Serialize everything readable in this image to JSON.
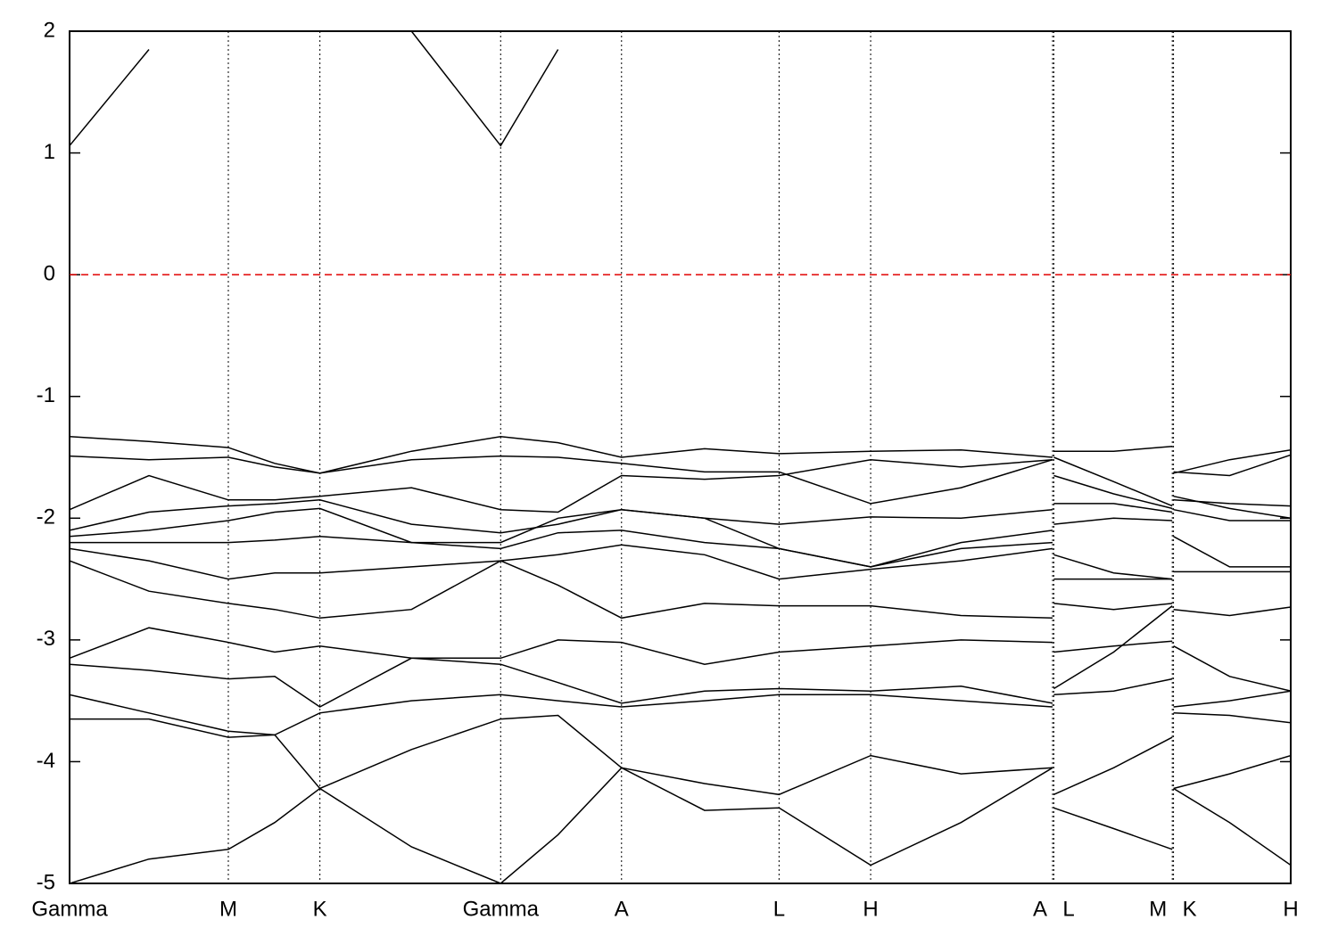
{
  "chart_data": {
    "type": "line",
    "color": "#000000",
    "hline": {
      "value": 0,
      "color": "#e00000"
    },
    "grid": true,
    "xlim": [
      0,
      1.0
    ],
    "ylim": [
      -5,
      2
    ],
    "yticks": [
      -5,
      -4,
      -3,
      -2,
      -1,
      0,
      1,
      2
    ],
    "xticks": [
      {
        "value": 0,
        "label": "Gamma"
      },
      {
        "value": 0.13,
        "label": "M"
      },
      {
        "value": 0.205,
        "label": "K"
      },
      {
        "value": 0.353,
        "label": "Gamma"
      },
      {
        "value": 0.452,
        "label": "A"
      },
      {
        "value": 0.581,
        "label": "L"
      },
      {
        "value": 0.656,
        "label": "H"
      },
      {
        "value": 0.805,
        "label": "A"
      },
      {
        "value": 0.806,
        "label": "L"
      },
      {
        "value": 0.903,
        "label": "M"
      },
      {
        "value": 0.904,
        "label": "K"
      },
      {
        "value": 1.0,
        "label": "H"
      }
    ],
    "x": [
      0,
      0.065,
      0.13,
      0.168,
      0.205,
      0.28,
      0.353,
      0.4,
      0.452,
      0.52,
      0.581,
      0.656,
      0.73,
      0.805,
      0.8055,
      0.806,
      0.855,
      0.903,
      0.9035,
      0.904,
      0.95,
      1.0
    ],
    "series": [
      {
        "values": [
          1.06,
          1.85,
          null,
          null,
          null,
          2.0,
          1.06,
          1.85,
          null,
          null,
          null,
          null,
          null,
          null,
          null,
          null,
          null,
          null,
          null,
          null,
          null,
          null
        ]
      },
      {
        "values": [
          -1.33,
          -1.37,
          -1.42,
          -1.55,
          -1.63,
          -1.45,
          -1.33,
          -1.38,
          -1.5,
          -1.43,
          -1.47,
          -1.45,
          -1.44,
          -1.5,
          null,
          -1.45,
          -1.45,
          -1.41,
          null,
          -1.63,
          -1.52,
          -1.44
        ]
      },
      {
        "values": [
          -1.49,
          -1.52,
          -1.5,
          -1.58,
          -1.63,
          -1.52,
          -1.49,
          -1.5,
          -1.55,
          -1.62,
          -1.62,
          -1.88,
          -1.75,
          -1.52,
          null,
          -1.5,
          -1.7,
          -1.9,
          null,
          -1.82,
          -1.92,
          -2.0
        ]
      },
      {
        "values": [
          -1.93,
          -1.65,
          -1.85,
          -1.85,
          -1.82,
          -1.75,
          -1.93,
          -1.95,
          -1.65,
          -1.68,
          -1.65,
          -1.52,
          -1.58,
          -1.52,
          null,
          -1.65,
          -1.8,
          -1.92,
          null,
          -1.62,
          -1.65,
          -1.48
        ]
      },
      {
        "values": [
          -2.1,
          -1.95,
          -1.9,
          -1.88,
          -1.85,
          -2.05,
          -2.12,
          -2.05,
          -1.93,
          -2.0,
          -2.05,
          -1.99,
          -2.0,
          -1.93,
          null,
          -1.88,
          -1.88,
          -1.95,
          null,
          -1.85,
          -1.88,
          -1.9
        ]
      },
      {
        "values": [
          -2.15,
          -2.1,
          -2.02,
          -1.95,
          -1.92,
          -2.2,
          -2.2,
          -2.0,
          -1.93,
          -2.0,
          -2.25,
          -2.4,
          -2.2,
          -2.1,
          null,
          -2.05,
          -2.0,
          -2.02,
          null,
          -1.93,
          -2.02,
          -2.02
        ]
      },
      {
        "values": [
          -2.2,
          -2.2,
          -2.2,
          -2.18,
          -2.15,
          -2.2,
          -2.25,
          -2.12,
          -2.1,
          -2.2,
          -2.25,
          -2.4,
          -2.25,
          -2.2,
          null,
          -2.3,
          -2.45,
          -2.5,
          null,
          -2.15,
          -2.4,
          -2.4
        ]
      },
      {
        "values": [
          -2.25,
          -2.35,
          -2.5,
          -2.45,
          -2.45,
          -2.4,
          -2.35,
          -2.3,
          -2.22,
          -2.3,
          -2.5,
          -2.42,
          -2.35,
          -2.25,
          null,
          -2.5,
          -2.5,
          -2.5,
          null,
          -2.44,
          -2.44,
          -2.44
        ]
      },
      {
        "values": [
          -2.35,
          -2.6,
          -2.7,
          -2.75,
          -2.82,
          -2.75,
          -2.35,
          -2.55,
          -2.82,
          -2.7,
          -2.72,
          -2.72,
          -2.8,
          -2.82,
          null,
          -2.7,
          -2.75,
          -2.7,
          null,
          -2.75,
          -2.8,
          -2.73
        ]
      },
      {
        "values": [
          -3.15,
          -2.9,
          -3.02,
          -3.1,
          -3.05,
          -3.15,
          -3.15,
          -3.0,
          -3.02,
          -3.2,
          -3.1,
          -3.05,
          -3.0,
          -3.02,
          null,
          -3.1,
          -3.05,
          -3.01,
          null,
          -3.05,
          -3.3,
          -3.42
        ]
      },
      {
        "values": [
          -3.2,
          -3.25,
          -3.32,
          -3.3,
          -3.55,
          -3.15,
          -3.2,
          -3.35,
          -3.52,
          -3.42,
          -3.4,
          -3.42,
          -3.38,
          -3.52,
          null,
          -3.4,
          -3.1,
          -2.72,
          null,
          -3.55,
          -3.5,
          -3.42
        ]
      },
      {
        "values": [
          -3.45,
          -3.6,
          -3.75,
          -3.78,
          -3.6,
          -3.5,
          -3.45,
          -3.5,
          -3.55,
          -3.5,
          -3.45,
          -3.45,
          -3.5,
          -3.55,
          null,
          -3.45,
          -3.42,
          -3.32,
          null,
          -3.6,
          -3.62,
          -3.68
        ]
      },
      {
        "values": [
          -3.65,
          -3.65,
          -3.8,
          -3.78,
          -4.22,
          -3.9,
          -3.65,
          -3.62,
          -4.05,
          -4.18,
          -4.27,
          -3.95,
          -4.1,
          -4.05,
          null,
          -4.27,
          -4.05,
          -3.8,
          null,
          -4.22,
          -4.1,
          -3.95
        ]
      },
      {
        "values": [
          -5.0,
          -4.8,
          -4.72,
          -4.5,
          -4.22,
          -4.7,
          -5.0,
          -4.6,
          -4.05,
          -4.4,
          -4.38,
          -4.85,
          -4.5,
          -4.05,
          null,
          -4.38,
          -4.55,
          -4.72,
          null,
          -4.22,
          -4.5,
          -4.85
        ]
      }
    ]
  }
}
